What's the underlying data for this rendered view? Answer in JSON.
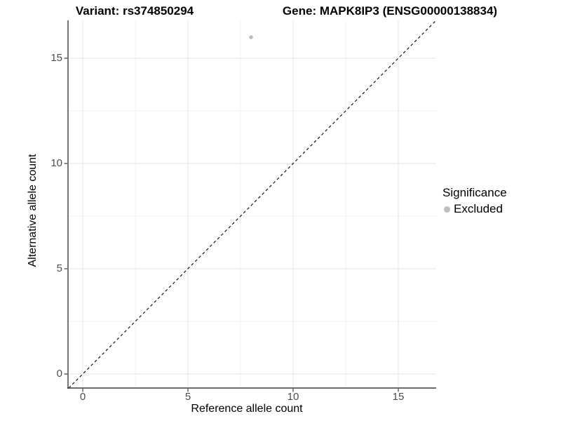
{
  "colors": {
    "background": "#ffffff",
    "axis_line": "#3c3c3c",
    "tick_label": "#4d4d4d",
    "grid_major": "#e4e4e4",
    "grid_minor": "#f2f2f2",
    "title_text": "#000000",
    "point_excluded": "#bebebe"
  },
  "chart_data": {
    "type": "scatter",
    "title_left": "Variant: rs374850294",
    "title_right": "Gene: MAPK8IP3 (ENSG00000138834)",
    "xlabel": "Reference allele count",
    "ylabel": "Alternative allele count",
    "xlim": [
      -0.67,
      16.8
    ],
    "ylim": [
      -0.67,
      16.8
    ],
    "x_ticks": [
      0,
      5,
      10,
      15
    ],
    "y_ticks": [
      0,
      5,
      10,
      15
    ],
    "x_minor_ticks": [
      2.5,
      7.5,
      12.5
    ],
    "y_minor_ticks": [
      2.5,
      7.5,
      12.5
    ],
    "grid": "major+minor",
    "points": [
      {
        "x": 8,
        "y": 16,
        "significance": "Excluded"
      }
    ],
    "reference_line": {
      "slope": 1,
      "intercept": 0,
      "style": "dashed",
      "color": "#000000"
    },
    "legend": {
      "title": "Significance",
      "position": "right",
      "entries": [
        {
          "label": "Excluded",
          "color": "#bebebe"
        }
      ]
    }
  }
}
